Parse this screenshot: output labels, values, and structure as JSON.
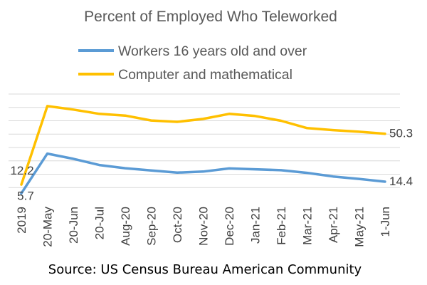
{
  "chart_data": {
    "type": "line",
    "title": "Percent of Employed Who Teleworked",
    "source": "Source: US Census Bureau American Community",
    "categories": [
      "2019",
      "20-May",
      "20-Jun",
      "20-Jul",
      "Aug-20",
      "Sep-20",
      "Oct-20",
      "Nov-20",
      "Dec-20",
      "Jan-21",
      "Feb-21",
      "Mar-21",
      "Apr-21",
      "May-21",
      "1-Jun"
    ],
    "series": [
      {
        "name": "Workers 16 years old and over",
        "color": "#5b9bd5",
        "values": [
          5.7,
          35.4,
          31.5,
          26.9,
          24.5,
          22.8,
          21.2,
          22.0,
          24.3,
          23.7,
          23.0,
          21.0,
          18.3,
          16.5,
          14.4
        ]
      },
      {
        "name": "Computer and mathematical",
        "color": "#ffc000",
        "values": [
          12.2,
          71.0,
          68.4,
          65.2,
          63.9,
          60.2,
          59.2,
          61.4,
          65.2,
          63.6,
          60.0,
          54.5,
          53.0,
          51.8,
          50.3
        ]
      }
    ],
    "data_labels": [
      {
        "series": 1,
        "index": 0,
        "text": "12.2"
      },
      {
        "series": 0,
        "index": 0,
        "text": "5.7"
      },
      {
        "series": 1,
        "index": 14,
        "text": "50.3"
      },
      {
        "series": 0,
        "index": 14,
        "text": "14.4"
      }
    ],
    "ylim": [
      0,
      80
    ],
    "yticks": [
      10,
      20,
      30,
      40,
      50,
      60,
      70,
      80
    ],
    "grid": true,
    "legend_position": "top"
  }
}
